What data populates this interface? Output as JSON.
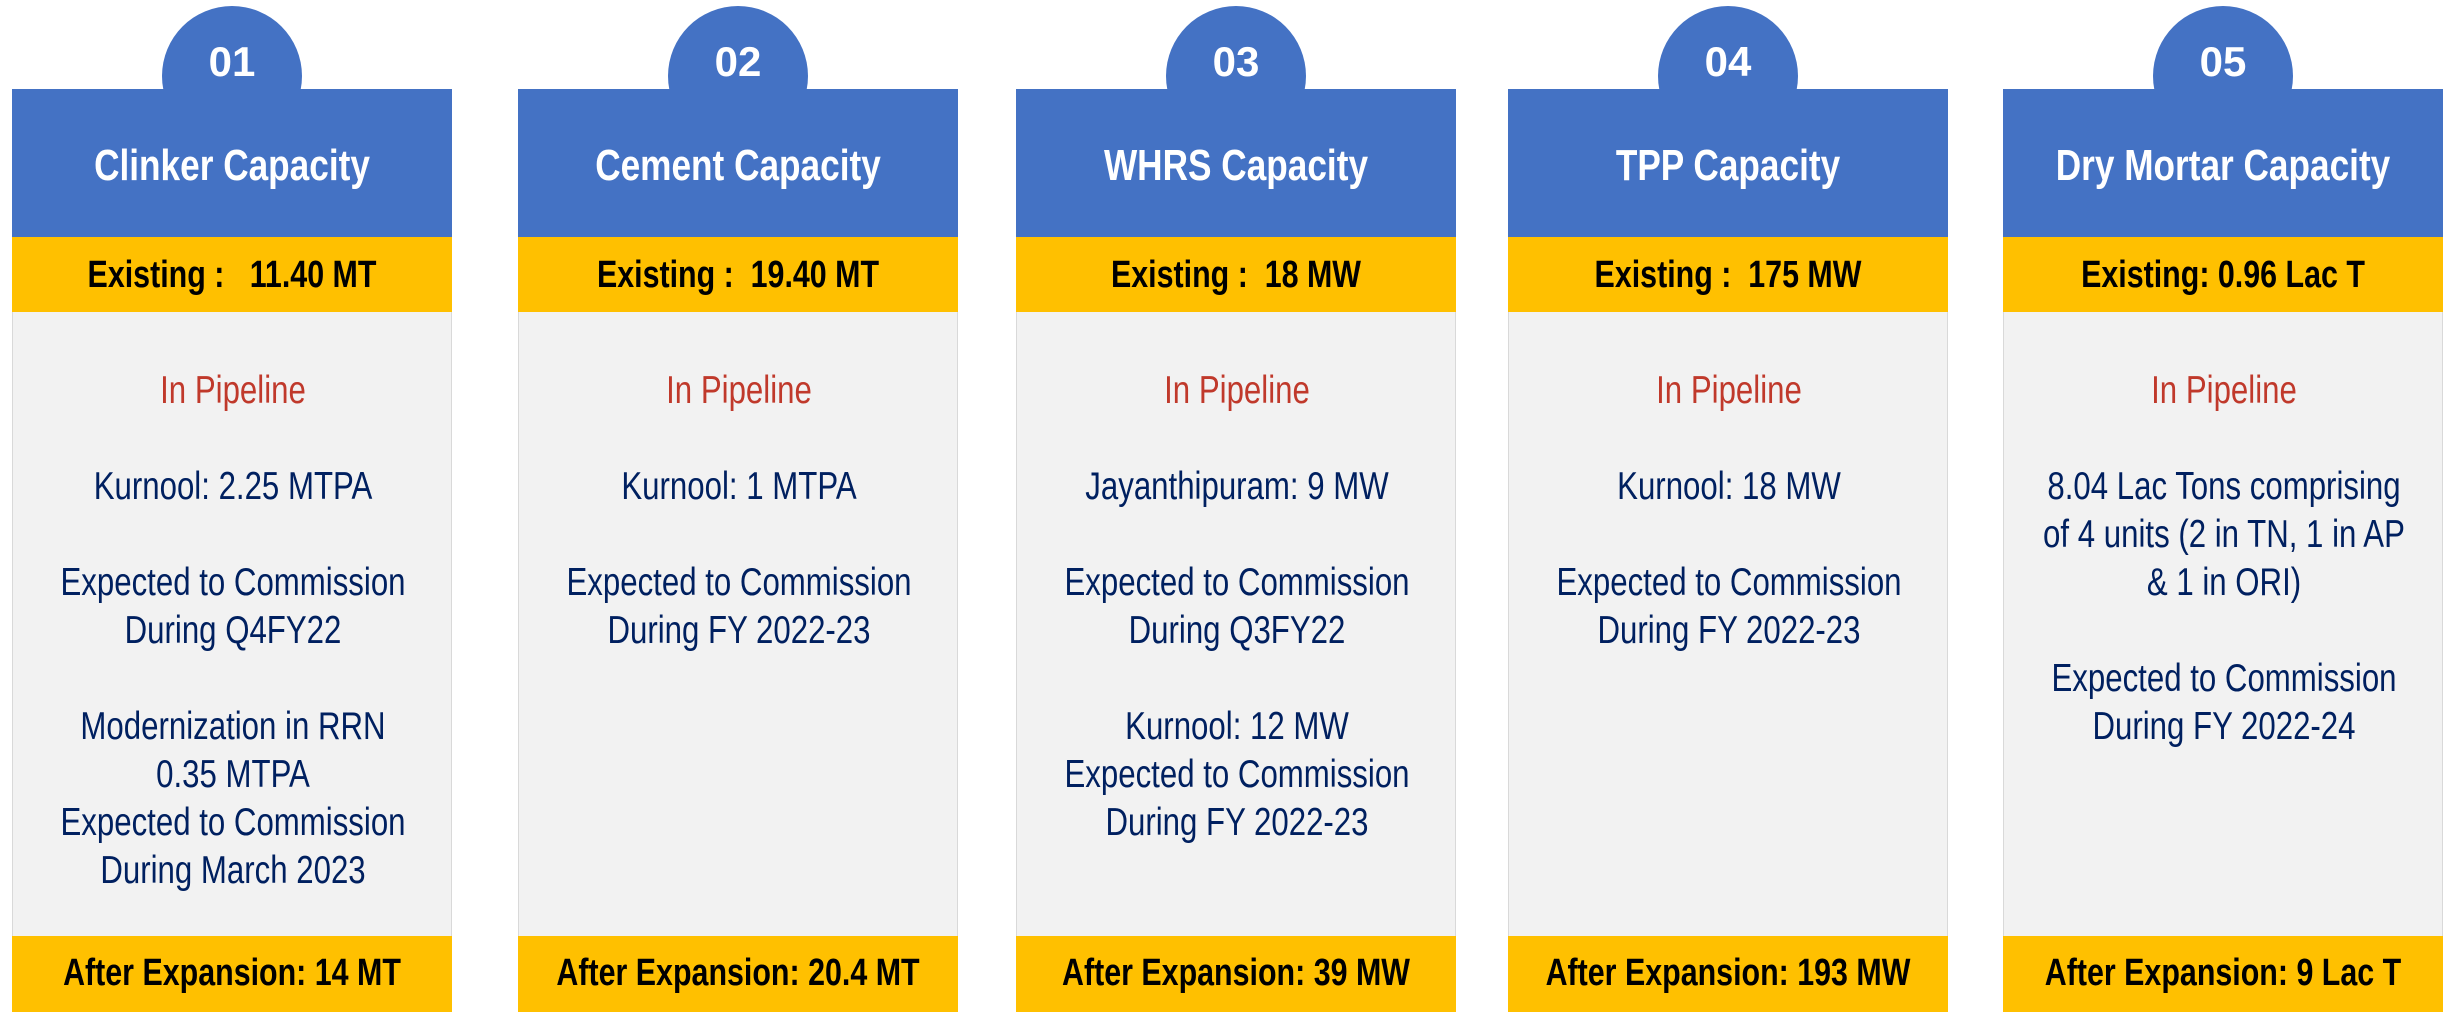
{
  "cards": [
    {
      "number": "01",
      "title": "Clinker Capacity",
      "existing": "Existing :   11.40 MT",
      "pipeline": "In Pipeline",
      "paragraphs": [
        [
          "Kurnool: 2.25 MTPA"
        ],
        [
          "Expected to Commission",
          "During Q4FY22"
        ],
        [
          "Modernization in RRN",
          "0.35 MTPA",
          "Expected to Commission",
          "During March 2023"
        ]
      ],
      "after": "After Expansion: 14 MT"
    },
    {
      "number": "02",
      "title": "Cement Capacity",
      "existing": "Existing :  19.40 MT",
      "pipeline": "In Pipeline",
      "paragraphs": [
        [
          "Kurnool: 1 MTPA"
        ],
        [
          "Expected to Commission",
          "During FY 2022-23"
        ]
      ],
      "after": "After Expansion: 20.4 MT"
    },
    {
      "number": "03",
      "title": "WHRS Capacity",
      "existing": "Existing :  18 MW",
      "pipeline": "In Pipeline",
      "paragraphs": [
        [
          "Jayanthipuram: 9 MW"
        ],
        [
          "Expected to Commission",
          "During Q3FY22"
        ],
        [
          "Kurnool: 12 MW",
          "Expected to Commission",
          "During FY 2022-23"
        ]
      ],
      "after": "After Expansion: 39 MW"
    },
    {
      "number": "04",
      "title": "TPP Capacity",
      "existing": "Existing :  175 MW",
      "pipeline": "In Pipeline",
      "paragraphs": [
        [
          "Kurnool: 18 MW"
        ],
        [
          "Expected to Commission",
          "During FY 2022-23"
        ]
      ],
      "after": "After Expansion: 193 MW"
    },
    {
      "number": "05",
      "title": "Dry Mortar Capacity",
      "existing": "Existing: 0.96 Lac T",
      "pipeline": "In Pipeline",
      "paragraphs": [
        [
          "8.04 Lac Tons comprising",
          "of 4 units (2 in TN, 1 in AP",
          "& 1 in ORI)"
        ],
        [
          "Expected to Commission",
          "During FY 2022-24"
        ]
      ],
      "after": "After Expansion: 9 Lac T"
    }
  ]
}
